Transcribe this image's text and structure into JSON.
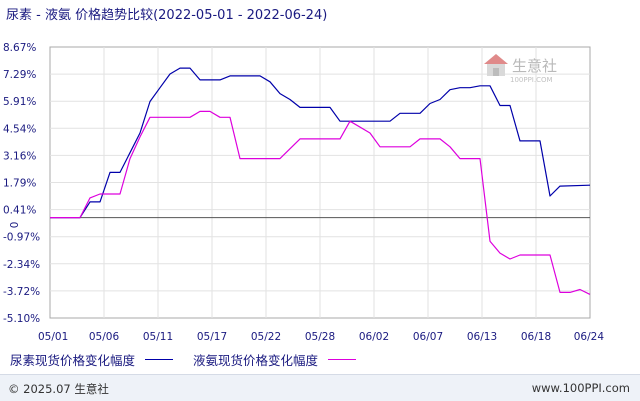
{
  "title": "尿素 - 液氨 价格趋势比较(2022-05-01 - 2022-06-24)",
  "watermark": {
    "name": "生意社",
    "url": "100PPI.COM"
  },
  "legend": [
    {
      "label": "尿素现货价格变化幅度",
      "color": "#0000aa"
    },
    {
      "label": "液氨现货价格变化幅度",
      "color": "#dd00dd"
    }
  ],
  "footer": {
    "copyright": "© 2025.07 生意社",
    "site": "www.100PPI.com"
  },
  "chart_data": {
    "type": "line",
    "title": "尿素 - 液氨 价格趋势比较(2022-05-01 - 2022-06-24)",
    "xlabel": "",
    "ylabel": "",
    "x_ticks": [
      "05/01",
      "05/06",
      "05/11",
      "05/17",
      "05/22",
      "05/28",
      "06/02",
      "06/07",
      "06/13",
      "06/18",
      "06/24"
    ],
    "y_ticks": [
      "8.67%",
      "7.29%",
      "5.91%",
      "4.54%",
      "3.16%",
      "1.79%",
      "0.41%",
      "-0.97%",
      "-2.34%",
      "-3.72%",
      "-5.10%"
    ],
    "zero_label": "0",
    "ylim": [
      -5.1,
      8.67
    ],
    "xlim": [
      "2022-05-01",
      "2022-06-24"
    ],
    "series": [
      {
        "name": "尿素现货价格变化幅度",
        "color": "#0000aa",
        "points": [
          [
            "2022-05-01",
            0.0
          ],
          [
            "2022-05-04",
            0.0
          ],
          [
            "2022-05-05",
            0.8
          ],
          [
            "2022-05-06",
            0.8
          ],
          [
            "2022-05-07",
            2.3
          ],
          [
            "2022-05-08",
            2.3
          ],
          [
            "2022-05-09",
            3.3
          ],
          [
            "2022-05-10",
            4.3
          ],
          [
            "2022-05-11",
            5.9
          ],
          [
            "2022-05-12",
            6.6
          ],
          [
            "2022-05-13",
            7.3
          ],
          [
            "2022-05-14",
            7.6
          ],
          [
            "2022-05-15",
            7.6
          ],
          [
            "2022-05-16",
            7.0
          ],
          [
            "2022-05-17",
            7.0
          ],
          [
            "2022-05-18",
            7.0
          ],
          [
            "2022-05-19",
            7.2
          ],
          [
            "2022-05-22",
            7.2
          ],
          [
            "2022-05-23",
            6.9
          ],
          [
            "2022-05-24",
            6.3
          ],
          [
            "2022-05-25",
            6.0
          ],
          [
            "2022-05-26",
            5.6
          ],
          [
            "2022-05-29",
            5.6
          ],
          [
            "2022-05-30",
            4.9
          ],
          [
            "2022-06-04",
            4.9
          ],
          [
            "2022-06-05",
            5.3
          ],
          [
            "2022-06-07",
            5.3
          ],
          [
            "2022-06-08",
            5.8
          ],
          [
            "2022-06-09",
            6.0
          ],
          [
            "2022-06-10",
            6.5
          ],
          [
            "2022-06-11",
            6.6
          ],
          [
            "2022-06-12",
            6.6
          ],
          [
            "2022-06-13",
            6.7
          ],
          [
            "2022-06-14",
            6.7
          ],
          [
            "2022-06-15",
            5.7
          ],
          [
            "2022-06-16",
            5.7
          ],
          [
            "2022-06-17",
            3.9
          ],
          [
            "2022-06-19",
            3.9
          ],
          [
            "2022-06-20",
            1.1
          ],
          [
            "2022-06-21",
            1.6
          ],
          [
            "2022-06-24",
            1.65
          ]
        ]
      },
      {
        "name": "液氨现货价格变化幅度",
        "color": "#dd00dd",
        "points": [
          [
            "2022-05-01",
            0.0
          ],
          [
            "2022-05-04",
            0.0
          ],
          [
            "2022-05-05",
            1.0
          ],
          [
            "2022-05-06",
            1.2
          ],
          [
            "2022-05-08",
            1.2
          ],
          [
            "2022-05-09",
            3.0
          ],
          [
            "2022-05-10",
            4.1
          ],
          [
            "2022-05-11",
            5.1
          ],
          [
            "2022-05-15",
            5.1
          ],
          [
            "2022-05-16",
            5.4
          ],
          [
            "2022-05-17",
            5.4
          ],
          [
            "2022-05-18",
            5.1
          ],
          [
            "2022-05-19",
            5.1
          ],
          [
            "2022-05-20",
            3.0
          ],
          [
            "2022-05-24",
            3.0
          ],
          [
            "2022-05-26",
            4.0
          ],
          [
            "2022-05-30",
            4.0
          ],
          [
            "2022-05-31",
            4.9
          ],
          [
            "2022-06-02",
            4.3
          ],
          [
            "2022-06-03",
            3.6
          ],
          [
            "2022-06-06",
            3.6
          ],
          [
            "2022-06-07",
            4.0
          ],
          [
            "2022-06-09",
            4.0
          ],
          [
            "2022-06-10",
            3.6
          ],
          [
            "2022-06-11",
            3.0
          ],
          [
            "2022-06-13",
            3.0
          ],
          [
            "2022-06-14",
            -1.2
          ],
          [
            "2022-06-15",
            -1.8
          ],
          [
            "2022-06-16",
            -2.1
          ],
          [
            "2022-06-17",
            -1.9
          ],
          [
            "2022-06-20",
            -1.9
          ],
          [
            "2022-06-21",
            -3.8
          ],
          [
            "2022-06-22",
            -3.8
          ],
          [
            "2022-06-23",
            -3.65
          ],
          [
            "2022-06-24",
            -3.9
          ]
        ]
      }
    ],
    "grid": true,
    "legend_position": "bottom-left"
  }
}
